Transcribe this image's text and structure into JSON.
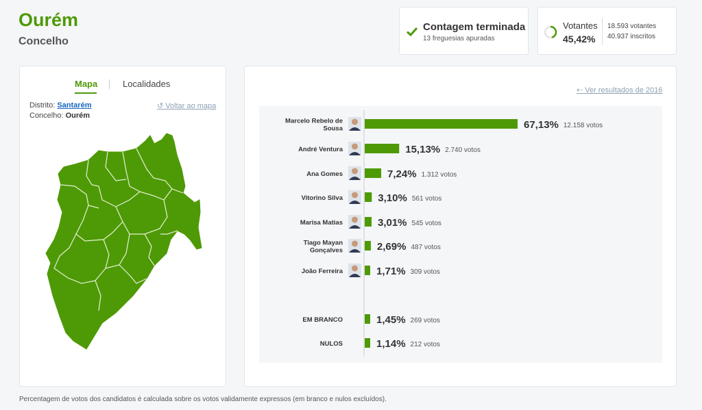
{
  "header": {
    "title": "Ourém",
    "subtitle": "Concelho"
  },
  "status": {
    "title": "Contagem terminada",
    "subtitle": "13 freguesias apuradas"
  },
  "voters": {
    "label": "Votantes",
    "percent": "45,42%",
    "fraction": 0.4542,
    "votes": "18.593 votantes",
    "registered": "40.937 inscritos"
  },
  "map_panel": {
    "tab_map": "Mapa",
    "tab_locations": "Localidades",
    "district_label": "Distrito:",
    "district_value": "Santarém",
    "council_label": "Concelho:",
    "council_value": "Ourém",
    "back_to_map": "Voltar ao mapa"
  },
  "results_panel": {
    "previous_results": "Ver resultados de 2016"
  },
  "chart_data": {
    "type": "bar",
    "orientation": "horizontal",
    "categories": [
      "Marcelo Rebelo de Sousa",
      "André Ventura",
      "Ana Gomes",
      "Vitorino Silva",
      "Marisa Matias",
      "Tiago Mayan Gonçalves",
      "João Ferreira",
      "EM BRANCO",
      "NULOS"
    ],
    "label_lines": [
      [
        "Marcelo Rebelo de",
        "Sousa"
      ],
      [
        "André Ventura"
      ],
      [
        "Ana Gomes"
      ],
      [
        "Vitorino Silva"
      ],
      [
        "Marisa Matias"
      ],
      [
        "Tiago Mayan",
        "Gonçalves"
      ],
      [
        "João Ferreira"
      ],
      [
        "EM BRANCO"
      ],
      [
        "NULOS"
      ]
    ],
    "values": [
      67.13,
      15.13,
      7.24,
      3.1,
      3.01,
      2.69,
      1.71,
      1.45,
      1.14
    ],
    "percent_labels": [
      "67,13%",
      "15,13%",
      "7,24%",
      "3,10%",
      "3,01%",
      "2,69%",
      "1,71%",
      "1,45%",
      "1,14%"
    ],
    "votes_labels": [
      "12.158 votos",
      "2.740 votos",
      "1.312 votos",
      "561 votos",
      "545 votos",
      "487 votos",
      "309 votos",
      "269 votos",
      "212 votos"
    ],
    "has_photo": [
      true,
      true,
      true,
      true,
      true,
      true,
      true,
      false,
      false
    ],
    "bar_color": "#4e9a06"
  },
  "footnote": "Percentagem de votos dos candidatos é calculada sobre os votos validamente expressos (em branco e nulos excluídos).",
  "colors": {
    "accent": "#4e9a06",
    "link": "#1565c0",
    "muted_link": "#8ca0b3"
  }
}
